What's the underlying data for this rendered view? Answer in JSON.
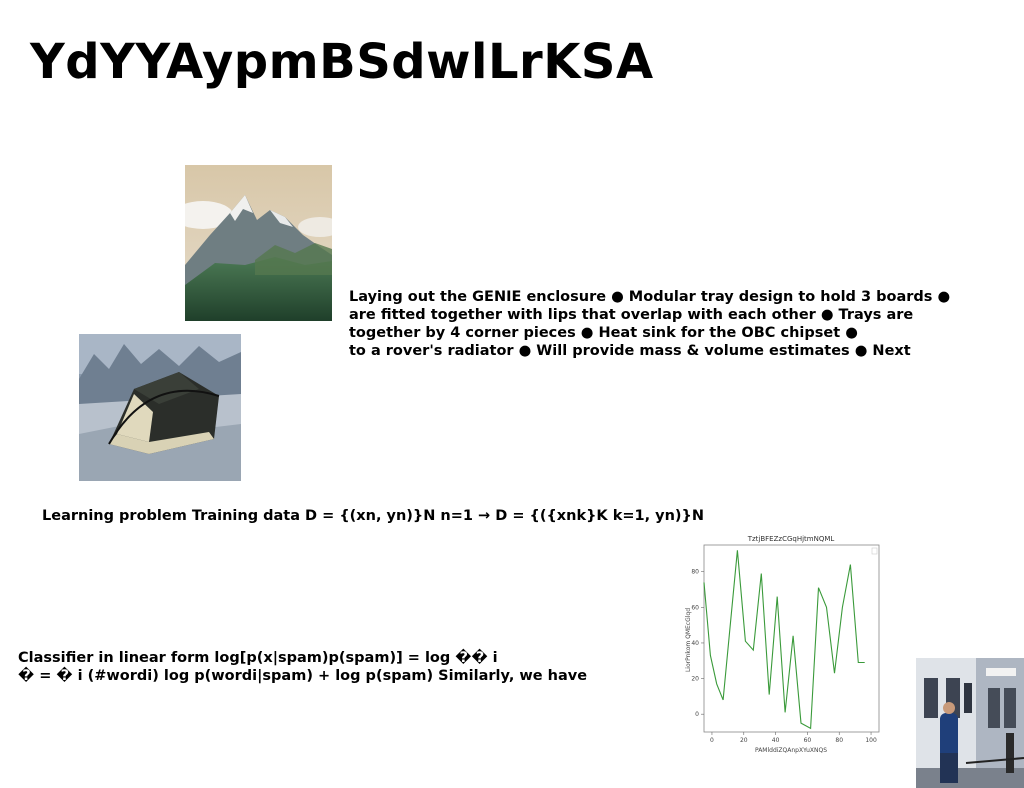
{
  "page": {
    "title": "YdYYAypmBSdwlLrKSA"
  },
  "text_block_1": {
    "lines": [
      "Laying out the GENIE enclosure ● Modular tray design to hold 3 boards ●",
      "are fitted together with lips that overlap with each other ● Trays are",
      "together by 4 corner pieces ● Heat sink for the OBC chipset ●",
      "to a rover's radiator ● Will provide mass & volume estimates ● Next"
    ]
  },
  "text_block_2": {
    "lines": [
      "Learning problem Training data D = {(xn, yn)}N n=1 → D = {({xnk}K k=1, yn)}N"
    ]
  },
  "text_block_3": {
    "lines": [
      "Classifier in linear form log[p(x|spam)p(spam)] = log �� i",
      "� = � i (#wordi) log p(wordi|spam) + log p(spam) Similarly, we have"
    ]
  },
  "images": {
    "mountain": "mountain-photo",
    "tent": "tent-photo",
    "street": "street-photo"
  },
  "chart_data": {
    "type": "line",
    "title": "TztjBFEZzCGqHjtmNQML",
    "xlabel": "PAMlddiZQAnpXYuXNQS",
    "ylabel": "LiorPnkom QMEcGlqd",
    "xlim": [
      -5,
      105
    ],
    "ylim": [
      -10,
      95
    ],
    "xticks": [
      0,
      20,
      40,
      60,
      80,
      100
    ],
    "yticks": [
      0,
      20,
      40,
      60,
      80
    ],
    "grid": false,
    "series": [
      {
        "color": "#3a9a3a",
        "x": [
          -5,
          -1,
          3,
          7,
          16,
          21,
          26,
          31,
          36,
          41,
          46,
          51,
          56,
          62,
          67,
          72,
          77,
          82,
          87,
          92,
          96
        ],
        "y": [
          74,
          33,
          17,
          8,
          92,
          41,
          36,
          79,
          11,
          66,
          1,
          44,
          -5,
          -8,
          71,
          60,
          23,
          60,
          84,
          29,
          29
        ]
      }
    ],
    "series_color": "#3a9a3a"
  }
}
